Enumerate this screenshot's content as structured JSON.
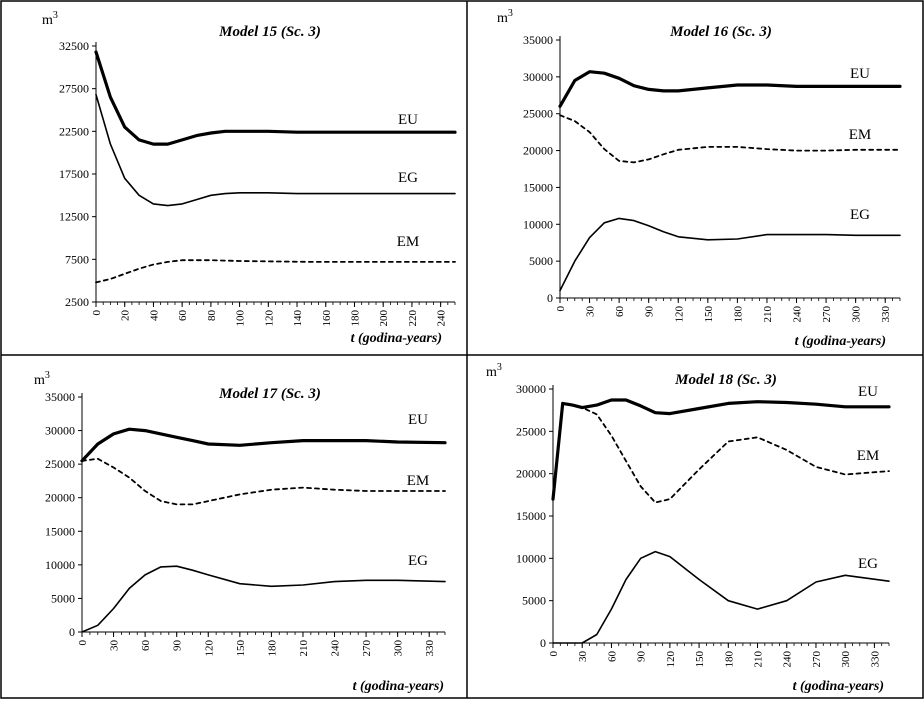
{
  "chart_data": [
    {
      "type": "line",
      "title": "Model 15 (Sc. 3)",
      "unit": "m3",
      "xlabel": "t (godina-years)",
      "ylim": [
        2500,
        32500
      ],
      "yticks": [
        2500,
        7500,
        12500,
        17500,
        22500,
        27500,
        32500
      ],
      "xlim": [
        0,
        250
      ],
      "xticks": [
        0,
        20,
        40,
        60,
        80,
        100,
        120,
        140,
        160,
        180,
        200,
        220,
        240
      ],
      "series": [
        {
          "name": "EU",
          "style": "thick",
          "x": [
            0,
            10,
            20,
            30,
            40,
            50,
            60,
            70,
            80,
            90,
            100,
            120,
            140,
            160,
            200,
            250
          ],
          "values": [
            31800,
            26500,
            23000,
            21500,
            21000,
            21000,
            21500,
            22000,
            22300,
            22500,
            22500,
            22500,
            22400,
            22400,
            22400,
            22400
          ]
        },
        {
          "name": "EG",
          "style": "thin",
          "x": [
            0,
            10,
            20,
            30,
            40,
            50,
            60,
            70,
            80,
            90,
            100,
            120,
            140,
            160,
            200,
            250
          ],
          "values": [
            26800,
            21000,
            17000,
            15000,
            14000,
            13800,
            14000,
            14500,
            15000,
            15200,
            15300,
            15300,
            15200,
            15200,
            15200,
            15200
          ]
        },
        {
          "name": "EM",
          "style": "dashed",
          "x": [
            0,
            10,
            20,
            30,
            40,
            50,
            60,
            80,
            100,
            150,
            200,
            250
          ],
          "values": [
            4800,
            5200,
            5800,
            6400,
            6900,
            7200,
            7400,
            7400,
            7300,
            7200,
            7200,
            7200
          ]
        }
      ]
    },
    {
      "type": "line",
      "title": "Model 16 (Sc. 3)",
      "unit": "m3",
      "xlabel": "t (godina-years)",
      "ylim": [
        0,
        35000
      ],
      "yticks": [
        0,
        5000,
        10000,
        15000,
        20000,
        25000,
        30000,
        35000
      ],
      "xlim": [
        0,
        345
      ],
      "xticks": [
        0,
        30,
        60,
        90,
        120,
        150,
        180,
        210,
        240,
        270,
        300,
        330
      ],
      "series": [
        {
          "name": "EU",
          "style": "thick",
          "x": [
            0,
            15,
            30,
            45,
            60,
            75,
            90,
            105,
            120,
            150,
            180,
            210,
            240,
            270,
            300,
            345
          ],
          "values": [
            26000,
            29500,
            30700,
            30500,
            29800,
            28800,
            28300,
            28100,
            28100,
            28500,
            28900,
            28900,
            28700,
            28700,
            28700,
            28700
          ]
        },
        {
          "name": "EM",
          "style": "dashed",
          "x": [
            0,
            15,
            30,
            45,
            60,
            75,
            90,
            105,
            120,
            150,
            180,
            210,
            240,
            270,
            300,
            345
          ],
          "values": [
            24800,
            24000,
            22500,
            20200,
            18600,
            18400,
            18800,
            19500,
            20100,
            20500,
            20500,
            20200,
            20000,
            20000,
            20100,
            20100
          ]
        },
        {
          "name": "EG",
          "style": "thin",
          "x": [
            0,
            15,
            30,
            45,
            60,
            75,
            90,
            105,
            120,
            150,
            180,
            210,
            240,
            270,
            300,
            345
          ],
          "values": [
            1000,
            5000,
            8200,
            10200,
            10800,
            10500,
            9800,
            9000,
            8300,
            7900,
            8000,
            8600,
            8600,
            8600,
            8500,
            8500
          ]
        }
      ]
    },
    {
      "type": "line",
      "title": "Model 17 (Sc. 3)",
      "unit": "m3",
      "xlabel": "t (godina-years)",
      "ylim": [
        0,
        35000
      ],
      "yticks": [
        0,
        5000,
        10000,
        15000,
        20000,
        25000,
        30000,
        35000
      ],
      "xlim": [
        0,
        345
      ],
      "xticks": [
        0,
        30,
        60,
        90,
        120,
        150,
        180,
        210,
        240,
        270,
        300,
        330
      ],
      "series": [
        {
          "name": "EU",
          "style": "thick",
          "x": [
            0,
            15,
            30,
            45,
            60,
            75,
            90,
            105,
            120,
            150,
            180,
            210,
            240,
            270,
            300,
            345
          ],
          "values": [
            25500,
            28000,
            29500,
            30200,
            30000,
            29500,
            29000,
            28500,
            28000,
            27800,
            28200,
            28500,
            28500,
            28500,
            28300,
            28200
          ]
        },
        {
          "name": "EM",
          "style": "dashed",
          "x": [
            0,
            15,
            30,
            45,
            60,
            75,
            90,
            105,
            120,
            150,
            180,
            210,
            240,
            270,
            300,
            345
          ],
          "values": [
            25500,
            25800,
            24500,
            23000,
            21000,
            19500,
            19000,
            19000,
            19500,
            20500,
            21200,
            21500,
            21200,
            21000,
            21000,
            21000
          ]
        },
        {
          "name": "EG",
          "style": "thin",
          "x": [
            0,
            15,
            30,
            45,
            60,
            75,
            90,
            105,
            120,
            150,
            180,
            210,
            240,
            270,
            300,
            345
          ],
          "values": [
            0,
            1000,
            3500,
            6500,
            8500,
            9700,
            9800,
            9200,
            8500,
            7200,
            6800,
            7000,
            7500,
            7700,
            7700,
            7500
          ]
        }
      ]
    },
    {
      "type": "line",
      "title": "Model 18 (Sc. 3)",
      "unit": "m3",
      "xlabel": "t (godina-years)",
      "ylim": [
        0,
        30000
      ],
      "yticks": [
        0,
        5000,
        10000,
        15000,
        20000,
        25000,
        30000
      ],
      "xlim": [
        0,
        345
      ],
      "xticks": [
        0,
        30,
        60,
        90,
        120,
        150,
        180,
        210,
        240,
        270,
        300,
        330
      ],
      "series": [
        {
          "name": "EU",
          "style": "thick",
          "x": [
            0,
            10,
            20,
            30,
            45,
            60,
            75,
            90,
            105,
            120,
            150,
            180,
            210,
            240,
            270,
            300,
            345
          ],
          "values": [
            17000,
            28300,
            28100,
            27800,
            28100,
            28700,
            28700,
            28000,
            27200,
            27100,
            27700,
            28300,
            28500,
            28400,
            28200,
            27900,
            27900
          ]
        },
        {
          "name": "EM",
          "style": "dashed",
          "x": [
            0,
            10,
            20,
            30,
            45,
            60,
            75,
            90,
            105,
            120,
            150,
            180,
            210,
            240,
            270,
            300,
            345
          ],
          "values": [
            17000,
            28300,
            28100,
            27800,
            27000,
            24500,
            21500,
            18500,
            16600,
            17000,
            20500,
            23800,
            24300,
            22800,
            20800,
            19900,
            20300
          ]
        },
        {
          "name": "EG",
          "style": "thin",
          "x": [
            0,
            20,
            30,
            45,
            60,
            75,
            90,
            105,
            120,
            150,
            180,
            210,
            240,
            270,
            300,
            345
          ],
          "values": [
            0,
            0,
            0,
            1000,
            4000,
            7500,
            10000,
            10800,
            10200,
            7500,
            5000,
            4000,
            5000,
            7200,
            8000,
            7300
          ]
        }
      ]
    }
  ]
}
